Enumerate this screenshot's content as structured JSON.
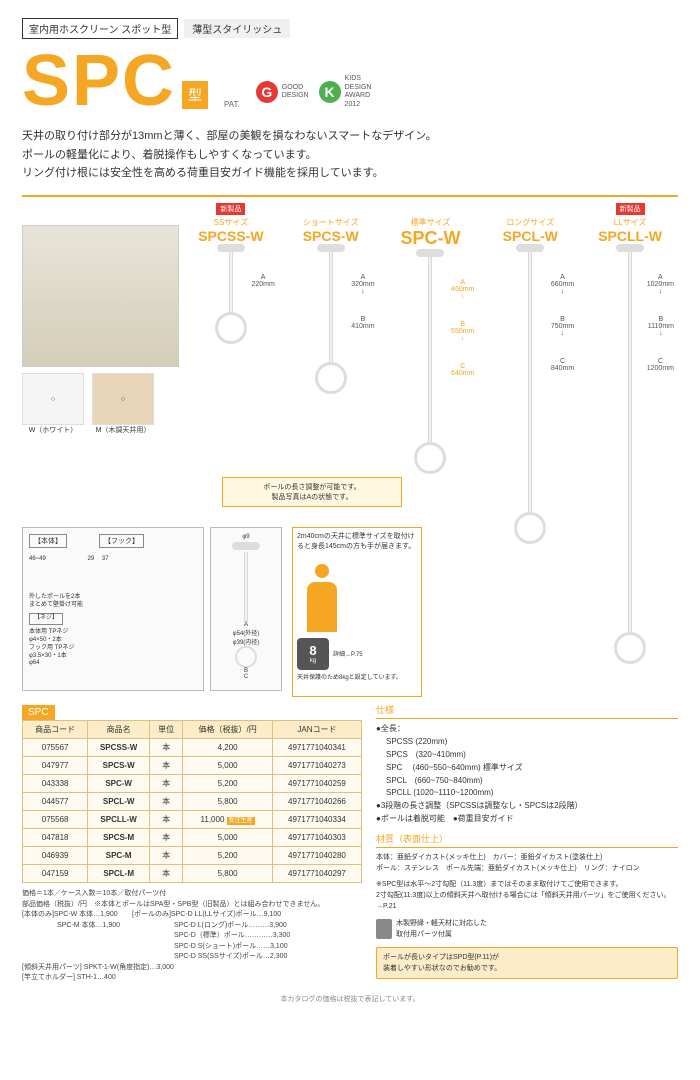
{
  "category": {
    "main": "室内用ホスクリーン スポット型",
    "sub": "薄型スタイリッシュ"
  },
  "title": {
    "main": "SPC",
    "suffix": "型",
    "pat": "PAT."
  },
  "badges": {
    "good_design": "GOOD\nDESIGN",
    "kids_design": "KIDS\nDESIGN\nAWARD\n2012"
  },
  "lead": {
    "l1": "天井の取り付け部分が13mmと薄く、部屋の美観を損なわないスマートなデザイン。",
    "l2": "ポールの軽量化により、着脱操作もしやすくなっています。",
    "l3": "リング付け根には安全性を高める荷重目安ガイド機能を採用しています。"
  },
  "sizes": [
    {
      "new": true,
      "label": "SSサイズ",
      "model": "SPCSS-W",
      "pole_h": 60,
      "dims": [
        {
          "m": "A",
          "v": "220mm"
        }
      ]
    },
    {
      "new": false,
      "label": "ショートサイズ",
      "model": "SPCS-W",
      "pole_h": 110,
      "dims": [
        {
          "m": "A",
          "v": "320mm"
        },
        {
          "m": "B",
          "v": "410mm"
        }
      ]
    },
    {
      "new": false,
      "label": "標準サイズ",
      "model": "SPC-W",
      "pole_h": 185,
      "featured": true,
      "dims": [
        {
          "m": "A",
          "v": "460mm"
        },
        {
          "m": "B",
          "v": "550mm"
        },
        {
          "m": "C",
          "v": "640mm"
        }
      ]
    },
    {
      "new": false,
      "label": "ロングサイズ",
      "model": "SPCL-W",
      "pole_h": 260,
      "dims": [
        {
          "m": "A",
          "v": "660mm"
        },
        {
          "m": "B",
          "v": "750mm"
        },
        {
          "m": "C",
          "v": "840mm"
        }
      ]
    },
    {
      "new": true,
      "label": "LLサイズ",
      "model": "SPCLL-W",
      "pole_h": 380,
      "dims": [
        {
          "m": "A",
          "v": "1020mm"
        },
        {
          "m": "B",
          "v": "1110mm"
        },
        {
          "m": "C",
          "v": "1200mm"
        }
      ]
    }
  ],
  "new_tag": "新製品",
  "swatches": {
    "w": "W（ホワイト）",
    "m": "M（木調天井用）"
  },
  "adjust_note": {
    "l1": "ポールの長さ調整が可能です。",
    "l2": "製品写真はAの状態です。"
  },
  "parts": {
    "body_label": "【本体】",
    "hook_label": "【フック】",
    "screw_label": "【ネジ】",
    "body_dim1": "46~49",
    "body_dim2": "13",
    "body_dim3": "φ64",
    "hook_dim1": "29",
    "hook_dim2": "31",
    "hook_dim3": "37",
    "hook_note": "外したポールを2本\nまとめて壁掛け可能",
    "pole_dim": "φ9",
    "ring_dim1": "φ54(外径)",
    "ring_dim2": "φ39(内径)",
    "screw1": "本体用 TPネジ\nφ4×50・2本",
    "screw2": "フック用 TPネジ\nφ3.5×30・1本"
  },
  "usage": {
    "text": "2m40cmの天井に標準サイズを取付けると身長145cmの方も手が届きます。",
    "weight": "8",
    "weight_unit": "kg",
    "weight_label": "目安荷重",
    "detail_ref": "詳細→P.75",
    "note": "天井保護のため8kgと設定しています。"
  },
  "table": {
    "title": "SPC",
    "headers": [
      "商品コード",
      "商品名",
      "単位",
      "価格（税抜）/円",
      "JANコード"
    ],
    "rows": [
      [
        "075567",
        "SPCSS-W",
        "本",
        "4,200",
        "4971771040341"
      ],
      [
        "047977",
        "SPCS-W",
        "本",
        "5,000",
        "4971771040273"
      ],
      [
        "043338",
        "SPC-W",
        "本",
        "5,200",
        "4971771040259"
      ],
      [
        "044577",
        "SPCL-W",
        "本",
        "5,800",
        "4971771040266"
      ],
      [
        "075568",
        "SPCLL-W",
        "本",
        "11,000",
        "4971771040334"
      ],
      [
        "047818",
        "SPCS-M",
        "本",
        "5,000",
        "4971771040303"
      ],
      [
        "046939",
        "SPC-M",
        "本",
        "5,200",
        "4971771040280"
      ],
      [
        "047159",
        "SPCL-M",
        "本",
        "5,800",
        "4971771040297"
      ]
    ],
    "order_note": "受注生産"
  },
  "spec_details": {
    "l1": "価格＝1本／ケース入数＝10本／取付パーツ付",
    "l2": "部品価格（税抜）/円　※本体とポールはSPA型・SPB型（旧製品）とは組み合わせできません。",
    "l3": "[本体のみ]SPC-W 本体…1,900\n　　　　　SPC-M 本体…1,900",
    "l4": "[ポールのみ]SPC-D LL(LLサイズ)ポール…9,100\n　　　　　　SPC-D L(ロング)ポール………3,900\n　　　　　　SPC-D（標準）ポール…………3,300\n　　　　　　SPC-D S(ショート)ポール……3,100\n　　　　　　SPC-D SS(SSサイズ)ポール…2,300",
    "l5": "[傾斜天井用パーツ] SPKT-1-W(角度指定)…3,000",
    "l6": "[竿立てホルダー] STH-1…400"
  },
  "specs": {
    "heading": "仕様",
    "length_label": "●全長：",
    "lengths": "SPCSS (220mm)\nSPCS　(320~410mm)\nSPC　 (460~550~640mm) 標準サイズ\nSPCL　(660~750~840mm)\nSPCLL (1020~1110~1200mm)",
    "adjust": "●3段階の長さ調整（SPCSSは調整なし・SPCSは2段階）",
    "removable": "●ポールは着脱可能",
    "guide": "●荷重目安ガイド",
    "material_heading": "材質（表面仕上）",
    "material": "本体：亜鉛ダイカスト(メッキ仕上)　カバー：亜鉛ダイカスト(塗装仕上)\nポール：ステンレス　ポール先端：亜鉛ダイカスト(メッキ仕上)　リング：ナイロン",
    "note": "※SPC型は水平〜2寸勾配（11.3度）まではそのまま取付けてご使用できます。\n2寸勾配(11.3度)以上の傾斜天井へ取付ける場合には「傾斜天井用パーツ」をご使用ください。　→P.21",
    "wood": "木製野縁・軽天材に対応した\n取付用パーツ付属"
  },
  "bottom": "ポールが長いタイプはSPD型(P.11)が\n装着しやすい形状なのでお勧めです。",
  "footer": "本カタログの価格は税抜で表記しています。"
}
